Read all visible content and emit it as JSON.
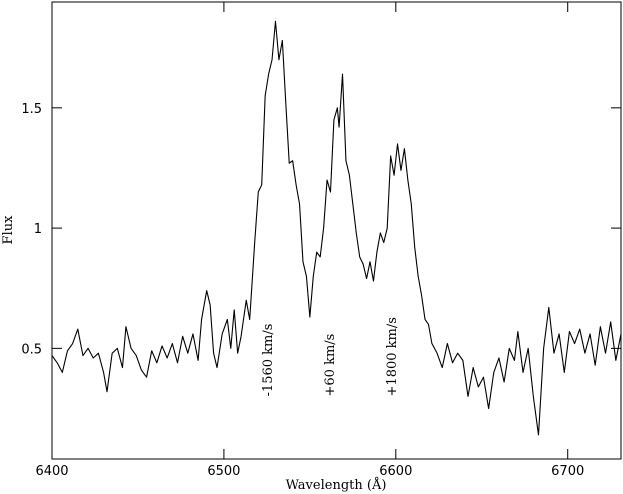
{
  "chart_data": {
    "type": "line",
    "x_label": "Wavelength (Å)",
    "y_label": "Flux",
    "xlim": [
      6400,
      6731
    ],
    "ylim": [
      0.04,
      1.94
    ],
    "xticks": [
      6400,
      6500,
      6600,
      6700
    ],
    "yticks": [
      0.5,
      1,
      1.5
    ],
    "color": "#000000",
    "x": [
      6400,
      6403,
      6406,
      6409,
      6412,
      6415,
      6418,
      6421,
      6424,
      6427,
      6430,
      6432,
      6435,
      6438,
      6441,
      6443,
      6446,
      6449,
      6452,
      6455,
      6458,
      6461,
      6464,
      6467,
      6470,
      6473,
      6476,
      6479,
      6482,
      6485,
      6487,
      6490,
      6492,
      6494,
      6496,
      6499,
      6502,
      6504,
      6506,
      6508,
      6510,
      6513,
      6515,
      6518,
      6520,
      6522,
      6524,
      6526,
      6528,
      6530,
      6532,
      6534,
      6536,
      6538,
      6540,
      6542,
      6544,
      6546,
      6548,
      6550,
      6552,
      6554,
      6556,
      6558,
      6560,
      6562,
      6564,
      6566,
      6567,
      6569,
      6571,
      6573,
      6575,
      6577,
      6579,
      6581,
      6583,
      6585,
      6587,
      6589,
      6591,
      6593,
      6595,
      6597,
      6599,
      6601,
      6603,
      6605,
      6607,
      6609,
      6611,
      6613,
      6615,
      6617,
      6619,
      6621,
      6624,
      6627,
      6630,
      6633,
      6636,
      6639,
      6642,
      6645,
      6648,
      6651,
      6654,
      6657,
      6660,
      6663,
      6666,
      6669,
      6671,
      6674,
      6677,
      6680,
      6683,
      6686,
      6689,
      6692,
      6695,
      6698,
      6701,
      6704,
      6707,
      6710,
      6713,
      6716,
      6719,
      6722,
      6725,
      6728,
      6731
    ],
    "values": [
      0.47,
      0.44,
      0.4,
      0.49,
      0.52,
      0.58,
      0.47,
      0.5,
      0.46,
      0.48,
      0.4,
      0.32,
      0.48,
      0.5,
      0.42,
      0.59,
      0.5,
      0.47,
      0.41,
      0.38,
      0.49,
      0.44,
      0.51,
      0.46,
      0.52,
      0.44,
      0.55,
      0.48,
      0.56,
      0.45,
      0.62,
      0.74,
      0.68,
      0.48,
      0.42,
      0.56,
      0.62,
      0.5,
      0.66,
      0.48,
      0.55,
      0.7,
      0.62,
      0.95,
      1.15,
      1.18,
      1.55,
      1.64,
      1.7,
      1.86,
      1.7,
      1.78,
      1.52,
      1.27,
      1.28,
      1.18,
      1.1,
      0.86,
      0.8,
      0.63,
      0.8,
      0.9,
      0.88,
      1.0,
      1.2,
      1.15,
      1.45,
      1.5,
      1.42,
      1.64,
      1.28,
      1.22,
      1.1,
      0.98,
      0.88,
      0.85,
      0.79,
      0.86,
      0.78,
      0.9,
      0.98,
      0.94,
      1.0,
      1.3,
      1.22,
      1.35,
      1.24,
      1.33,
      1.2,
      1.1,
      0.92,
      0.8,
      0.72,
      0.62,
      0.6,
      0.52,
      0.48,
      0.42,
      0.52,
      0.44,
      0.48,
      0.45,
      0.3,
      0.42,
      0.34,
      0.38,
      0.25,
      0.4,
      0.46,
      0.36,
      0.5,
      0.45,
      0.57,
      0.4,
      0.5,
      0.3,
      0.14,
      0.5,
      0.67,
      0.48,
      0.56,
      0.4,
      0.57,
      0.52,
      0.58,
      0.48,
      0.56,
      0.43,
      0.59,
      0.48,
      0.61,
      0.45,
      0.56
    ],
    "annotations": [
      {
        "text": "-1560 km/s",
        "x": 6528,
        "y": 0.3
      },
      {
        "text": "+60 km/s",
        "x": 6564,
        "y": 0.3
      },
      {
        "text": "+1800 km/s",
        "x": 6600,
        "y": 0.3
      }
    ]
  }
}
